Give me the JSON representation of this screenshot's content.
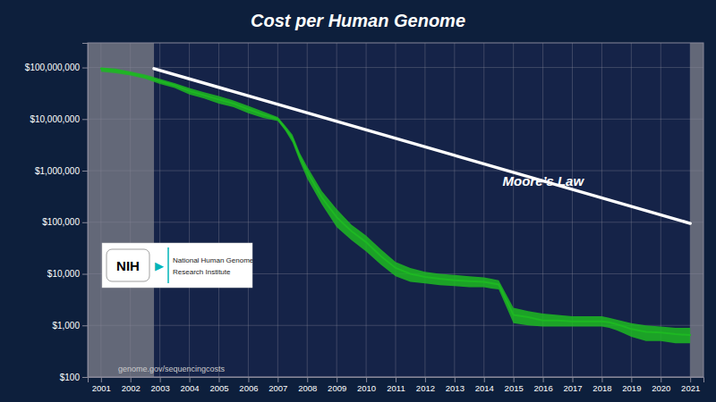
{
  "chart_data": {
    "type": "line",
    "title": "Cost per Human Genome",
    "log": "y",
    "grid": true,
    "xlim": [
      2000.55,
      2021.45
    ],
    "xticks": [
      2001,
      2002,
      2003,
      2004,
      2005,
      2006,
      2007,
      2008,
      2009,
      2010,
      2011,
      2012,
      2013,
      2014,
      2015,
      2016,
      2017,
      2018,
      2019,
      2020,
      2021
    ],
    "ylim": [
      100,
      300000000
    ],
    "yticks": [
      {
        "value": 100,
        "label": "$100"
      },
      {
        "value": 1000,
        "label": "$1,000"
      },
      {
        "value": 10000,
        "label": "$10,000"
      },
      {
        "value": 100000,
        "label": "$100,000"
      },
      {
        "value": 1000000,
        "label": "$1,000,000"
      },
      {
        "value": 10000000,
        "label": "$10,000,000"
      },
      {
        "value": 100000000,
        "label": "$100,000,000"
      }
    ],
    "x": [
      2001,
      2001.5,
      2002,
      2002.5,
      2003,
      2003.5,
      2004,
      2004.5,
      2005,
      2005.5,
      2006,
      2006.5,
      2007,
      2007.25,
      2007.5,
      2007.75,
      2008,
      2008.5,
      2009,
      2009.5,
      2010,
      2010.5,
      2011,
      2011.5,
      2012,
      2012.5,
      2013,
      2013.5,
      2014,
      2014.25,
      2014.5,
      2015,
      2015.5,
      2016,
      2016.5,
      2017,
      2017.5,
      2018,
      2018.25,
      2018.5,
      2018.75,
      2019,
      2019.5,
      2020,
      2020.5,
      2021
    ],
    "series": [
      {
        "type": "line",
        "color": "#1db822",
        "values": [
          95000000,
          87000000,
          77000000,
          66000000,
          54000000,
          45000000,
          35000000,
          29000000,
          24000000,
          20000000,
          15500000,
          12200000,
          10100000,
          6700000,
          4200000,
          1850000,
          950000,
          300000,
          125000,
          67000,
          41000,
          22000,
          13000,
          10000,
          8700,
          8000,
          7500,
          7200,
          7000,
          6600,
          6200,
          1600,
          1450,
          1250,
          1250,
          1200,
          1200,
          1200,
          1150,
          1050,
          950,
          850,
          750,
          725,
          675,
          650
        ],
        "lower": [
          83000000,
          77000000,
          70000000,
          60000000,
          48000000,
          40000000,
          30000000,
          25000000,
          20000000,
          17000000,
          13000000,
          10500000,
          9200000,
          6000000,
          3500000,
          1500000,
          700000,
          220000,
          80000,
          45000,
          27000,
          15000,
          9000,
          7000,
          6500,
          6000,
          5800,
          5500,
          5500,
          5200,
          5000,
          1100,
          1000,
          950,
          950,
          950,
          950,
          950,
          900,
          800,
          700,
          600,
          500,
          500,
          450,
          450
        ],
        "upper": [
          100000000,
          95000000,
          84000000,
          73000000,
          60000000,
          50000000,
          40000000,
          33000000,
          28000000,
          23000000,
          18000000,
          14000000,
          11000000,
          7500000,
          5000000,
          2200000,
          1200000,
          400000,
          180000,
          90000,
          55000,
          30000,
          17000,
          13000,
          11000,
          10000,
          9500,
          9000,
          8500,
          8000,
          7500,
          2200,
          1900,
          1700,
          1600,
          1500,
          1500,
          1500,
          1400,
          1300,
          1200,
          1100,
          1000,
          950,
          900,
          900
        ]
      },
      {
        "name": "Moore’s Law",
        "type": "line",
        "color": "#ffffff",
        "x": [
          2002.8,
          2021
        ],
        "values": [
          95000000,
          95000
        ]
      }
    ],
    "annotations": [
      "genome.gov/sequencingcosts",
      "NIH",
      "▶",
      "National Human Genome",
      "Research Institute"
    ]
  }
}
